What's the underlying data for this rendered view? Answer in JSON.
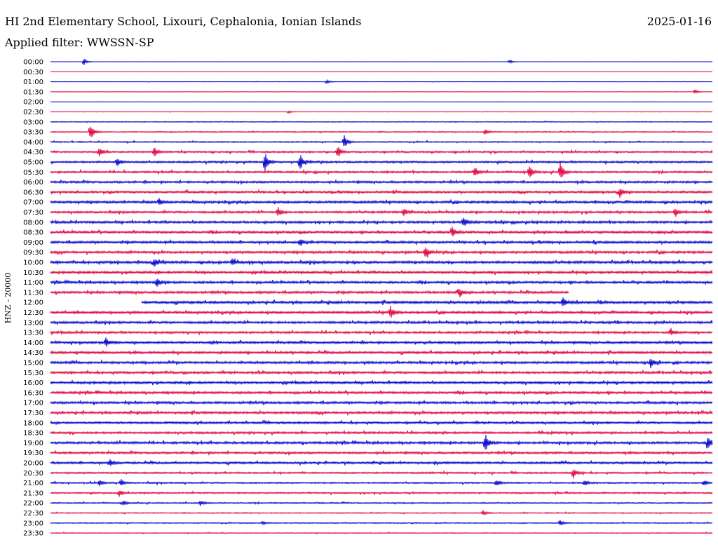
{
  "header": {
    "station_title": "HI 2nd Elementary School, Lixouri, Cephalonia, Ionian Islands",
    "date": "2025-01-16",
    "filter_text": "Applied filter: WWSSN-SP"
  },
  "channel_label": "HNZ - 20000",
  "colors": {
    "trace_a": "#0000cc",
    "trace_b": "#e00040",
    "text": "#000000",
    "background": "#ffffff"
  },
  "chart_data": {
    "type": "line",
    "title": "HI 2nd Elementary School, Lixouri, Cephalonia, Ionian Islands",
    "xlabel": "",
    "ylabel": "HNZ - 20000",
    "row_labels": [
      "00:00",
      "00:30",
      "01:00",
      "01:30",
      "02:00",
      "02:30",
      "03:00",
      "03:30",
      "04:00",
      "04:30",
      "05:00",
      "05:30",
      "06:00",
      "06:30",
      "07:00",
      "07:30",
      "08:00",
      "08:30",
      "09:00",
      "09:30",
      "10:00",
      "10:30",
      "11:00",
      "11:30",
      "12:00",
      "12:30",
      "13:00",
      "13:30",
      "14:00",
      "14:30",
      "15:00",
      "15:30",
      "16:00",
      "16:30",
      "17:00",
      "17:30",
      "18:00",
      "18:30",
      "19:00",
      "19:30",
      "20:00",
      "20:30",
      "21:00",
      "21:30",
      "22:00",
      "22:30",
      "23:00",
      "23:30"
    ],
    "row_minutes": 30,
    "noise_level": [
      0.1,
      0.1,
      0.2,
      0.2,
      0.1,
      0.2,
      0.4,
      0.5,
      0.6,
      0.8,
      0.9,
      0.9,
      1.0,
      1.0,
      1.1,
      1.0,
      1.1,
      1.1,
      1.1,
      1.1,
      1.2,
      1.1,
      1.1,
      1.1,
      1.2,
      1.1,
      1.1,
      1.0,
      1.1,
      1.1,
      1.1,
      1.1,
      1.1,
      1.1,
      1.1,
      1.1,
      1.0,
      1.0,
      1.1,
      1.0,
      1.0,
      0.8,
      0.7,
      0.7,
      0.6,
      0.5,
      0.5,
      0.4
    ],
    "events": [
      {
        "row": 0,
        "minute": 1.5,
        "amplitude": 6
      },
      {
        "row": 0,
        "minute": 20.8,
        "amplitude": 3
      },
      {
        "row": 2,
        "minute": 12.5,
        "amplitude": 3
      },
      {
        "row": 3,
        "minute": 29.2,
        "amplitude": 3
      },
      {
        "row": 5,
        "minute": 10.8,
        "amplitude": 2
      },
      {
        "row": 7,
        "minute": 1.8,
        "amplitude": 14
      },
      {
        "row": 7,
        "minute": 19.7,
        "amplitude": 4
      },
      {
        "row": 8,
        "minute": 13.3,
        "amplitude": 12
      },
      {
        "row": 9,
        "minute": 2.2,
        "amplitude": 8
      },
      {
        "row": 9,
        "minute": 4.7,
        "amplitude": 7
      },
      {
        "row": 9,
        "minute": 13.0,
        "amplitude": 10
      },
      {
        "row": 10,
        "minute": 3.0,
        "amplitude": 8
      },
      {
        "row": 10,
        "minute": 9.7,
        "amplitude": 16
      },
      {
        "row": 10,
        "minute": 11.3,
        "amplitude": 14
      },
      {
        "row": 11,
        "minute": 19.2,
        "amplitude": 10
      },
      {
        "row": 11,
        "minute": 21.7,
        "amplitude": 10
      },
      {
        "row": 11,
        "minute": 23.1,
        "amplitude": 14
      },
      {
        "row": 13,
        "minute": 25.8,
        "amplitude": 8
      },
      {
        "row": 14,
        "minute": 4.9,
        "amplitude": 6
      },
      {
        "row": 15,
        "minute": 10.3,
        "amplitude": 8
      },
      {
        "row": 15,
        "minute": 16.0,
        "amplitude": 7
      },
      {
        "row": 15,
        "minute": 28.3,
        "amplitude": 7
      },
      {
        "row": 16,
        "minute": 18.7,
        "amplitude": 9
      },
      {
        "row": 17,
        "minute": 18.2,
        "amplitude": 8
      },
      {
        "row": 18,
        "minute": 11.3,
        "amplitude": 5
      },
      {
        "row": 19,
        "minute": 17.0,
        "amplitude": 11
      },
      {
        "row": 20,
        "minute": 4.7,
        "amplitude": 6
      },
      {
        "row": 20,
        "minute": 8.2,
        "amplitude": 6
      },
      {
        "row": 22,
        "minute": 4.8,
        "amplitude": 8
      },
      {
        "row": 23,
        "minute": 18.5,
        "amplitude": 9
      },
      {
        "row": 24,
        "minute": 23.2,
        "amplitude": 9
      },
      {
        "row": 25,
        "minute": 15.4,
        "amplitude": 10
      },
      {
        "row": 27,
        "minute": 28.1,
        "amplitude": 6
      },
      {
        "row": 28,
        "minute": 2.5,
        "amplitude": 7
      },
      {
        "row": 30,
        "minute": 27.2,
        "amplitude": 8
      },
      {
        "row": 38,
        "minute": 19.7,
        "amplitude": 14
      },
      {
        "row": 38,
        "minute": 29.8,
        "amplitude": 12
      },
      {
        "row": 40,
        "minute": 2.7,
        "amplitude": 5
      },
      {
        "row": 41,
        "minute": 23.7,
        "amplitude": 8
      },
      {
        "row": 42,
        "minute": 2.2,
        "amplitude": 5
      },
      {
        "row": 42,
        "minute": 3.2,
        "amplitude": 5
      },
      {
        "row": 42,
        "minute": 20.2,
        "amplitude": 5
      },
      {
        "row": 42,
        "minute": 24.2,
        "amplitude": 5
      },
      {
        "row": 42,
        "minute": 29.6,
        "amplitude": 5
      },
      {
        "row": 43,
        "minute": 3.1,
        "amplitude": 6
      },
      {
        "row": 44,
        "minute": 3.3,
        "amplitude": 4
      },
      {
        "row": 44,
        "minute": 6.8,
        "amplitude": 4
      },
      {
        "row": 45,
        "minute": 19.6,
        "amplitude": 4
      },
      {
        "row": 46,
        "minute": 9.6,
        "amplitude": 3
      },
      {
        "row": 46,
        "minute": 23.1,
        "amplitude": 4
      }
    ],
    "gaps": [
      {
        "row": 23,
        "from_minute": 23.5,
        "to_minute": 30
      },
      {
        "row": 24,
        "from_minute": 0,
        "to_minute": 4.1
      }
    ],
    "grid": false,
    "legend": "none"
  }
}
